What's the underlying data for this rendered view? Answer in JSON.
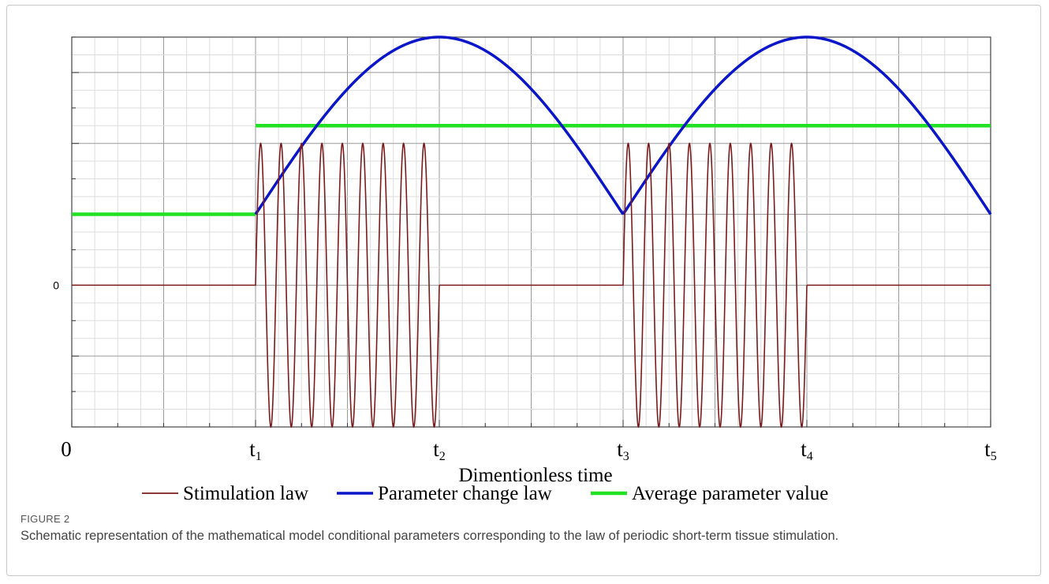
{
  "figure": {
    "label": "FIGURE 2",
    "caption": "Schematic representation of the mathematical model conditional parameters corresponding to the law of periodic short-term tissue stimulation."
  },
  "chart_data": {
    "type": "line",
    "xlabel": "Dimentionless time",
    "ylabel": "",
    "xlim": [
      0,
      5
    ],
    "ylim": [
      -1,
      1.75
    ],
    "x_ticks": [
      {
        "value": 0,
        "label": "0",
        "sub": ""
      },
      {
        "value": 1,
        "label": "t",
        "sub": "1"
      },
      {
        "value": 2,
        "label": "t",
        "sub": "2"
      },
      {
        "value": 3,
        "label": "t",
        "sub": "3"
      },
      {
        "value": 4,
        "label": "t",
        "sub": "4"
      },
      {
        "value": 5,
        "label": "t",
        "sub": "5"
      }
    ],
    "y_ticks": [
      {
        "value": 0,
        "label": "0"
      }
    ],
    "grid": true,
    "legend_position": "bottom",
    "series": [
      {
        "name": "Stimulation law",
        "color": "#7a1c1c",
        "description_segments": [
          {
            "x_start": 0,
            "x_end": 1,
            "value": 0
          },
          {
            "x_start": 1,
            "x_end": 2,
            "oscillation": {
              "amplitude": 1,
              "cycles": 9
            }
          },
          {
            "x_start": 2,
            "x_end": 3,
            "value": 0
          },
          {
            "x_start": 3,
            "x_end": 4,
            "oscillation": {
              "amplitude": 1,
              "cycles": 9
            }
          },
          {
            "x_start": 4,
            "x_end": 5,
            "value": 0
          }
        ]
      },
      {
        "name": "Parameter change law",
        "color": "#0a16c8",
        "arches": [
          {
            "x_start": 1,
            "x_end": 3,
            "base": 0.5,
            "peak": 1.75,
            "peak_x": 2
          },
          {
            "x_start": 3,
            "x_end": 5,
            "base": 0.5,
            "peak": 1.75,
            "peak_x": 4
          }
        ]
      },
      {
        "name": "Average parameter value",
        "color": "#22e022",
        "steps": [
          {
            "x_start": 0,
            "x_end": 1,
            "value": 0.5
          },
          {
            "x_start": 1,
            "x_end": 5,
            "value": 1.125
          }
        ]
      }
    ]
  }
}
